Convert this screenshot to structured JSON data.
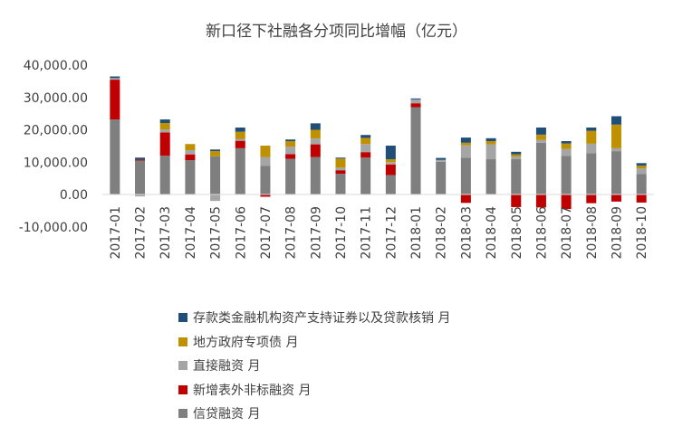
{
  "chart_data": {
    "type": "bar",
    "stacked": true,
    "title": "新口径下社融各分项同比增幅（亿元）",
    "categories": [
      "2017-01",
      "2017-02",
      "2017-03",
      "2017-04",
      "2017-05",
      "2017-06",
      "2017-07",
      "2017-08",
      "2017-09",
      "2017-10",
      "2017-11",
      "2017-12",
      "2018-01",
      "2018-02",
      "2018-03",
      "2018-04",
      "2018-05",
      "2018-06",
      "2018-07",
      "2018-08",
      "2018-09",
      "2018-10"
    ],
    "y_ticks": [
      "40,000.00",
      "30,000.00",
      "20,000.00",
      "10,000.00",
      "0.00",
      "-10,000.00"
    ],
    "ylim": [
      -10000,
      40000
    ],
    "grid": false,
    "legend_position": "bottom",
    "series": [
      {
        "name": "信贷融资 月",
        "color": "#7f7f7f",
        "values": [
          23200,
          10500,
          12000,
          10600,
          11800,
          14300,
          8900,
          11000,
          11600,
          6400,
          11400,
          6000,
          27000,
          10100,
          11400,
          10900,
          10900,
          16000,
          11900,
          12800,
          13400,
          6300
        ]
      },
      {
        "name": "新增表外非标融资 月",
        "color": "#c00000",
        "values": [
          12300,
          300,
          7200,
          1800,
          0,
          2300,
          -700,
          1500,
          3900,
          1100,
          1700,
          3300,
          1200,
          0,
          -2600,
          0,
          -3900,
          -4000,
          -4500,
          -2700,
          -2200,
          -2500
        ]
      },
      {
        "name": "直接融资 月",
        "color": "#a5a5a5",
        "values": [
          500,
          -600,
          900,
          1300,
          -2000,
          600,
          2700,
          2300,
          1800,
          800,
          2500,
          700,
          1200,
          600,
          3800,
          4600,
          800,
          900,
          2200,
          2900,
          900,
          1800
        ]
      },
      {
        "name": "地方政府专项债 月",
        "color": "#bf9000",
        "values": [
          0,
          0,
          2000,
          1900,
          1600,
          2200,
          3500,
          1700,
          2700,
          2800,
          1900,
          900,
          0,
          0,
          800,
          1000,
          700,
          1600,
          1700,
          4000,
          7300,
          800
        ]
      },
      {
        "name": "存款类金融机构资产支持证券以及贷款核销 月",
        "color": "#1f4e79",
        "values": [
          500,
          600,
          1100,
          0,
          500,
          1300,
          0,
          500,
          2000,
          300,
          900,
          4200,
          300,
          600,
          1600,
          900,
          800,
          2200,
          700,
          1000,
          2600,
          800
        ]
      }
    ]
  }
}
